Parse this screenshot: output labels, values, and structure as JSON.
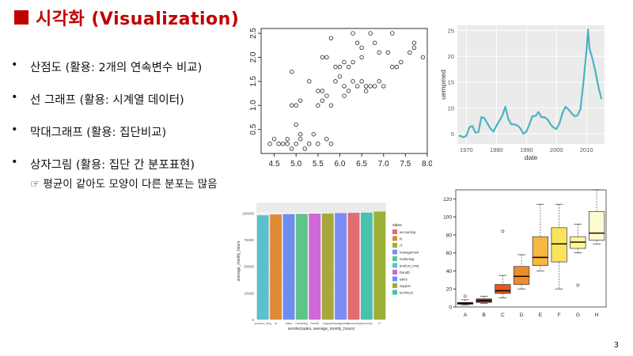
{
  "header": {
    "title": "시각화 (Visualization)"
  },
  "bullets": [
    {
      "text": "산점도 (활용: 2개의 연속변수 비교)"
    },
    {
      "text": "선 그래프 (활용: 시계열 데이터)"
    },
    {
      "text": "막대그래프 (활용: 집단비교)"
    },
    {
      "text": "상자그림 (활용: 집단 간 분포표현)",
      "sub": "☞ 평균이 같아도 모양이 다른 분포는 많음"
    }
  ],
  "page_number": "3",
  "chart_data": [
    {
      "type": "scatter",
      "xlim": [
        4.2,
        8.0
      ],
      "ylim": [
        0,
        2.6
      ],
      "x_ticks": [
        "4.5",
        "5.0",
        "5.5",
        "6.0",
        "6.5",
        "7.0",
        "7.5",
        "8.0"
      ],
      "y_ticks": [
        "0.5",
        "1.0",
        "1.5",
        "2.0",
        "2.5"
      ],
      "points": [
        [
          4.4,
          0.2
        ],
        [
          4.5,
          0.3
        ],
        [
          4.6,
          0.2
        ],
        [
          4.7,
          0.2
        ],
        [
          4.8,
          0.2
        ],
        [
          4.9,
          0.1
        ],
        [
          5.0,
          0.2
        ],
        [
          5.1,
          0.4
        ],
        [
          5.2,
          0.1
        ],
        [
          5.3,
          0.2
        ],
        [
          5.4,
          0.4
        ],
        [
          5.5,
          0.2
        ],
        [
          5.7,
          0.3
        ],
        [
          5.8,
          0.2
        ],
        [
          4.8,
          0.3
        ],
        [
          5.0,
          0.6
        ],
        [
          5.1,
          0.3
        ],
        [
          4.9,
          1.7
        ],
        [
          4.9,
          1.0
        ],
        [
          5.0,
          1.0
        ],
        [
          5.1,
          1.1
        ],
        [
          5.5,
          1.3
        ],
        [
          5.6,
          1.3
        ],
        [
          5.7,
          1.2
        ],
        [
          5.8,
          1.0
        ],
        [
          5.9,
          1.5
        ],
        [
          6.0,
          1.6
        ],
        [
          6.1,
          1.4
        ],
        [
          6.2,
          1.3
        ],
        [
          6.3,
          1.5
        ],
        [
          6.4,
          1.4
        ],
        [
          6.5,
          1.5
        ],
        [
          6.6,
          1.4
        ],
        [
          6.7,
          1.4
        ],
        [
          6.8,
          1.4
        ],
        [
          6.9,
          1.5
        ],
        [
          7.0,
          1.4
        ],
        [
          5.6,
          2.0
        ],
        [
          5.7,
          2.0
        ],
        [
          5.8,
          2.4
        ],
        [
          6.0,
          1.8
        ],
        [
          6.1,
          1.9
        ],
        [
          6.2,
          1.8
        ],
        [
          6.3,
          2.5
        ],
        [
          6.4,
          2.3
        ],
        [
          6.5,
          2.2
        ],
        [
          6.7,
          2.5
        ],
        [
          6.8,
          2.3
        ],
        [
          6.9,
          2.1
        ],
        [
          7.1,
          2.1
        ],
        [
          7.2,
          1.8
        ],
        [
          7.3,
          1.8
        ],
        [
          7.4,
          1.9
        ],
        [
          7.6,
          2.1
        ],
        [
          7.7,
          2.3
        ],
        [
          7.9,
          2.0
        ],
        [
          7.7,
          2.2
        ],
        [
          7.2,
          2.5
        ],
        [
          6.3,
          1.9
        ],
        [
          6.5,
          2.0
        ],
        [
          5.6,
          1.1
        ],
        [
          5.5,
          1.0
        ],
        [
          6.1,
          1.2
        ],
        [
          6.6,
          1.3
        ],
        [
          5.3,
          1.5
        ],
        [
          5.9,
          1.8
        ]
      ]
    },
    {
      "type": "line",
      "xlabel": "date",
      "ylabel": "uempmed",
      "xlim": [
        1967,
        2016
      ],
      "ylim": [
        3,
        26
      ],
      "x_ticks": [
        "1970",
        "1980",
        "1990",
        "2000",
        "2010"
      ],
      "y_ticks": [
        "5",
        "10",
        "15",
        "20",
        "25"
      ],
      "points": [
        [
          1967.5,
          4.5
        ],
        [
          1968,
          4.6
        ],
        [
          1969,
          4.3
        ],
        [
          1970,
          4.6
        ],
        [
          1971,
          6.2
        ],
        [
          1972,
          6.5
        ],
        [
          1973,
          5.2
        ],
        [
          1974,
          5.3
        ],
        [
          1975,
          8.2
        ],
        [
          1976,
          8.0
        ],
        [
          1977,
          7.0
        ],
        [
          1978,
          6.0
        ],
        [
          1979,
          5.4
        ],
        [
          1980,
          6.5
        ],
        [
          1981,
          7.5
        ],
        [
          1982,
          8.5
        ],
        [
          1983,
          10.2
        ],
        [
          1984,
          7.8
        ],
        [
          1985,
          6.8
        ],
        [
          1986,
          6.8
        ],
        [
          1987,
          6.6
        ],
        [
          1988,
          6.0
        ],
        [
          1989,
          5.0
        ],
        [
          1990,
          5.4
        ],
        [
          1991,
          6.8
        ],
        [
          1992,
          8.4
        ],
        [
          1993,
          8.4
        ],
        [
          1994,
          9.2
        ],
        [
          1995,
          8.2
        ],
        [
          1996,
          8.2
        ],
        [
          1997,
          7.8
        ],
        [
          1998,
          6.8
        ],
        [
          1999,
          6.2
        ],
        [
          2000,
          5.9
        ],
        [
          2001,
          7.0
        ],
        [
          2002,
          9.0
        ],
        [
          2003,
          10.2
        ],
        [
          2004,
          9.7
        ],
        [
          2005,
          9.0
        ],
        [
          2006,
          8.4
        ],
        [
          2007,
          8.5
        ],
        [
          2008,
          9.8
        ],
        [
          2009,
          15.0
        ],
        [
          2010,
          21.0
        ],
        [
          2010.5,
          25.2
        ],
        [
          2011,
          21.5
        ],
        [
          2012,
          19.5
        ],
        [
          2013,
          17.0
        ],
        [
          2014,
          14.0
        ],
        [
          2015,
          11.7
        ]
      ],
      "color": "#4bb3c0"
    },
    {
      "type": "bar",
      "xlabel": "reorder(sales, average_montly_hours)",
      "ylabel": "average_montly_hours",
      "ylim": [
        0,
        110000
      ],
      "y_ticks": [
        "0",
        "25000",
        "50000",
        "75000",
        "100000"
      ],
      "categories": [
        "product_mng",
        "hr",
        "sales",
        "marketing",
        "RandD",
        "support",
        "management",
        "accounting",
        "technical",
        "IT"
      ],
      "legend_title": "sales",
      "legend_entries": [
        "accounting",
        "hr",
        "IT",
        "management",
        "marketing",
        "product_mng",
        "RandD",
        "sales",
        "support",
        "technical"
      ],
      "values": [
        98000,
        98800,
        99100,
        99300,
        99600,
        99800,
        100100,
        100300,
        100500,
        101500
      ],
      "colors": [
        "#5bc0d0",
        "#e08a33",
        "#6c8cf0",
        "#5ec48a",
        "#d068d8",
        "#a7a83c",
        "#7b8cf5",
        "#e26c73",
        "#48c1ad",
        "#9bb034"
      ]
    },
    {
      "type": "box",
      "categories": [
        "A",
        "B",
        "C",
        "D",
        "E",
        "F",
        "G",
        "H"
      ],
      "ylim": [
        0,
        130
      ],
      "y_ticks": [
        "0",
        "20",
        "40",
        "60",
        "80",
        "100",
        "120"
      ],
      "boxes": [
        {
          "min": 2,
          "q1": 3,
          "med": 4,
          "q3": 5,
          "max": 8,
          "out": [
            12
          ],
          "color": "#8b1a00"
        },
        {
          "min": 4,
          "q1": 5,
          "med": 7,
          "q3": 9,
          "max": 12,
          "out": [],
          "color": "#b0260b"
        },
        {
          "min": 10,
          "q1": 15,
          "med": 18,
          "q3": 25,
          "max": 35,
          "out": [
            84
          ],
          "color": "#e8561a"
        },
        {
          "min": 20,
          "q1": 25,
          "med": 34,
          "q3": 45,
          "max": 58,
          "out": [],
          "color": "#f08c2a"
        },
        {
          "min": 40,
          "q1": 46,
          "med": 55,
          "q3": 78,
          "max": 114,
          "out": [],
          "color": "#f7b843"
        },
        {
          "min": 20,
          "q1": 50,
          "med": 70,
          "q3": 88,
          "max": 114,
          "out": [],
          "color": "#fbe35e"
        },
        {
          "min": 60,
          "q1": 65,
          "med": 72,
          "q3": 78,
          "max": 92,
          "out": [
            24
          ],
          "color": "#fdf79a"
        },
        {
          "min": 70,
          "q1": 74,
          "med": 82,
          "q3": 106,
          "max": 130,
          "out": [],
          "color": "#fefbcf"
        }
      ]
    }
  ]
}
